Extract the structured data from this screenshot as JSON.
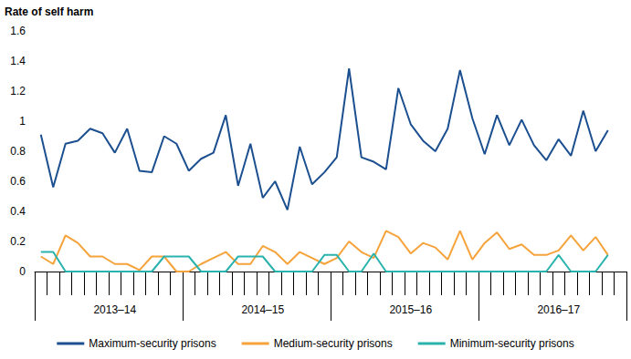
{
  "chart_data": {
    "type": "line",
    "y_label": "Rate of self harm",
    "categories": [
      null,
      null,
      null,
      null,
      null,
      null,
      "2013–14",
      null,
      null,
      null,
      null,
      null,
      null,
      null,
      null,
      null,
      null,
      null,
      "2014–15",
      null,
      null,
      null,
      null,
      null,
      null,
      null,
      null,
      null,
      null,
      null,
      "2015–16",
      null,
      null,
      null,
      null,
      null,
      null,
      null,
      null,
      null,
      null,
      null,
      "2016–17",
      null,
      null,
      null,
      null,
      null
    ],
    "series": [
      {
        "name": "Maximum-security prisons",
        "color": "#1b4f8f",
        "values": [
          0.91,
          0.56,
          0.85,
          0.87,
          0.95,
          0.92,
          0.79,
          0.95,
          0.67,
          0.66,
          0.9,
          0.85,
          0.67,
          0.75,
          0.79,
          1.04,
          0.57,
          0.85,
          0.49,
          0.6,
          0.41,
          0.83,
          0.58,
          0.66,
          0.76,
          1.35,
          0.76,
          0.73,
          0.68,
          1.22,
          0.98,
          0.87,
          0.8,
          0.95,
          1.34,
          1.02,
          0.78,
          1.04,
          0.84,
          1.01,
          0.84,
          0.74,
          0.88,
          0.77,
          1.07,
          0.8,
          0.94,
          null
        ]
      },
      {
        "name": "Medium-security prisons",
        "color": "#f5a33a",
        "values": [
          0.1,
          0.05,
          0.24,
          0.19,
          0.1,
          0.1,
          0.05,
          0.05,
          0.01,
          0.1,
          0.1,
          0.0,
          0.0,
          0.05,
          0.09,
          0.13,
          0.05,
          0.05,
          0.17,
          0.13,
          0.05,
          0.13,
          0.09,
          0.05,
          0.09,
          0.2,
          0.13,
          0.09,
          0.27,
          0.23,
          0.12,
          0.19,
          0.16,
          0.08,
          0.27,
          0.08,
          0.19,
          0.26,
          0.15,
          0.18,
          0.11,
          0.11,
          0.14,
          0.24,
          0.14,
          0.23,
          0.11,
          null
        ]
      },
      {
        "name": "Minimum-security prisons",
        "color": "#2ab3ad",
        "values": [
          0.13,
          0.13,
          0,
          0,
          0,
          0,
          0,
          0,
          0,
          0,
          0.1,
          0.1,
          0.1,
          0,
          0,
          0,
          0.1,
          0.1,
          0.1,
          0,
          0,
          0,
          0,
          0.11,
          0.11,
          0,
          0,
          0.12,
          0,
          0,
          0,
          0,
          0,
          0,
          0,
          0,
          0,
          0,
          0,
          0,
          0,
          0,
          0.11,
          0,
          0,
          0,
          0.11,
          null
        ]
      }
    ],
    "ylim": [
      0,
      1.6
    ],
    "yticks": [
      0,
      0.2,
      0.4,
      0.6,
      0.8,
      1,
      1.2,
      1.4,
      1.6
    ],
    "grid": false,
    "legend": "bottom"
  }
}
